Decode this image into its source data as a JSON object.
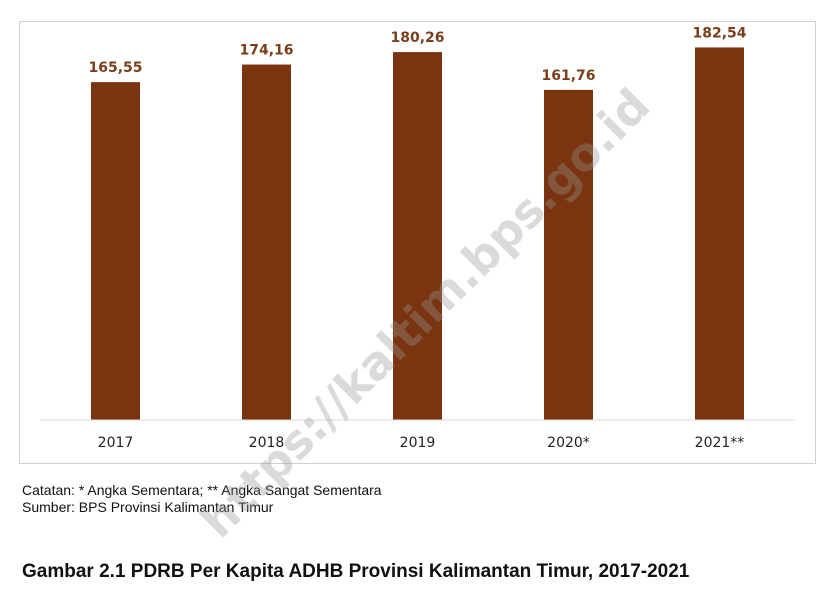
{
  "chart_data": {
    "type": "bar",
    "categories": [
      "2017",
      "2018",
      "2019",
      "2020*",
      "2021**"
    ],
    "values": [
      165.55,
      174.16,
      180.26,
      161.76,
      182.54
    ],
    "value_labels": [
      "165,55",
      "174,16",
      "180,26",
      "161,76",
      "182,54"
    ],
    "ylim": [
      0,
      195
    ],
    "bar_color": "#7a3510",
    "label_color": "#7a3f1a",
    "grid": false,
    "legend": "none"
  },
  "notes": {
    "line1": "Catatan: * Angka Sementara; ** Angka Sangat Sementara",
    "line2": "Sumber: BPS Provinsi Kalimantan Timur"
  },
  "figure_title": "Gambar 2.1  PDRB Per Kapita ADHB  Provinsi Kalimantan Timur, 2017-2021",
  "watermark": "https://kaltim.bps.go.id"
}
